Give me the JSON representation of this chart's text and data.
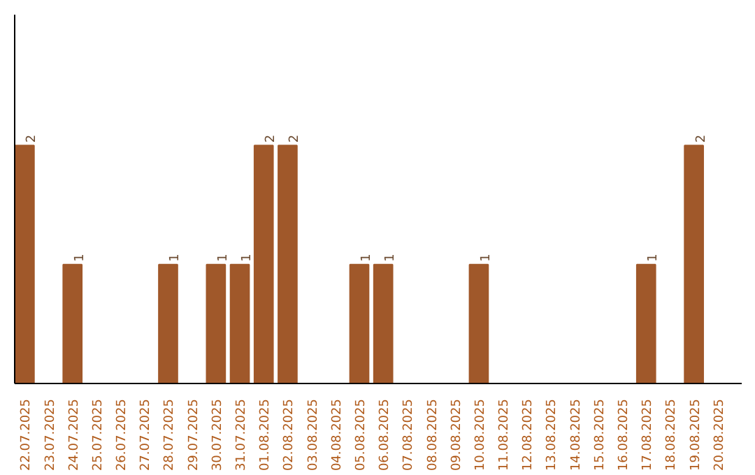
{
  "chart_data": {
    "type": "bar",
    "categories": [
      "22.07.2025",
      "23.07.2025",
      "24.07.2025",
      "25.07.2025",
      "26.07.2025",
      "27.07.2025",
      "28.07.2025",
      "29.07.2025",
      "30.07.2025",
      "31.07.2025",
      "01.08.2025",
      "02.08.2025",
      "03.08.2025",
      "04.08.2025",
      "05.08.2025",
      "06.08.2025",
      "07.08.2025",
      "08.08.2025",
      "09.08.2025",
      "10.08.2025",
      "11.08.2025",
      "12.08.2025",
      "13.08.2025",
      "14.08.2025",
      "15.08.2025",
      "16.08.2025",
      "17.08.2025",
      "18.08.2025",
      "19.08.2025",
      "20.08.2025"
    ],
    "values": [
      2,
      0,
      1,
      0,
      0,
      0,
      1,
      0,
      1,
      1,
      2,
      2,
      0,
      0,
      1,
      1,
      0,
      0,
      0,
      1,
      0,
      0,
      0,
      0,
      0,
      0,
      1,
      0,
      2,
      0
    ],
    "value_labels": [
      "2",
      null,
      "1",
      null,
      null,
      null,
      "1",
      null,
      "1",
      "1",
      "2",
      "2",
      null,
      null,
      "1",
      "1",
      null,
      null,
      null,
      "1",
      null,
      null,
      null,
      null,
      null,
      null,
      "1",
      null,
      "2",
      null
    ],
    "color": "#a0582a",
    "ylim": [
      0,
      3.1
    ],
    "tick_labels": "x"
  }
}
